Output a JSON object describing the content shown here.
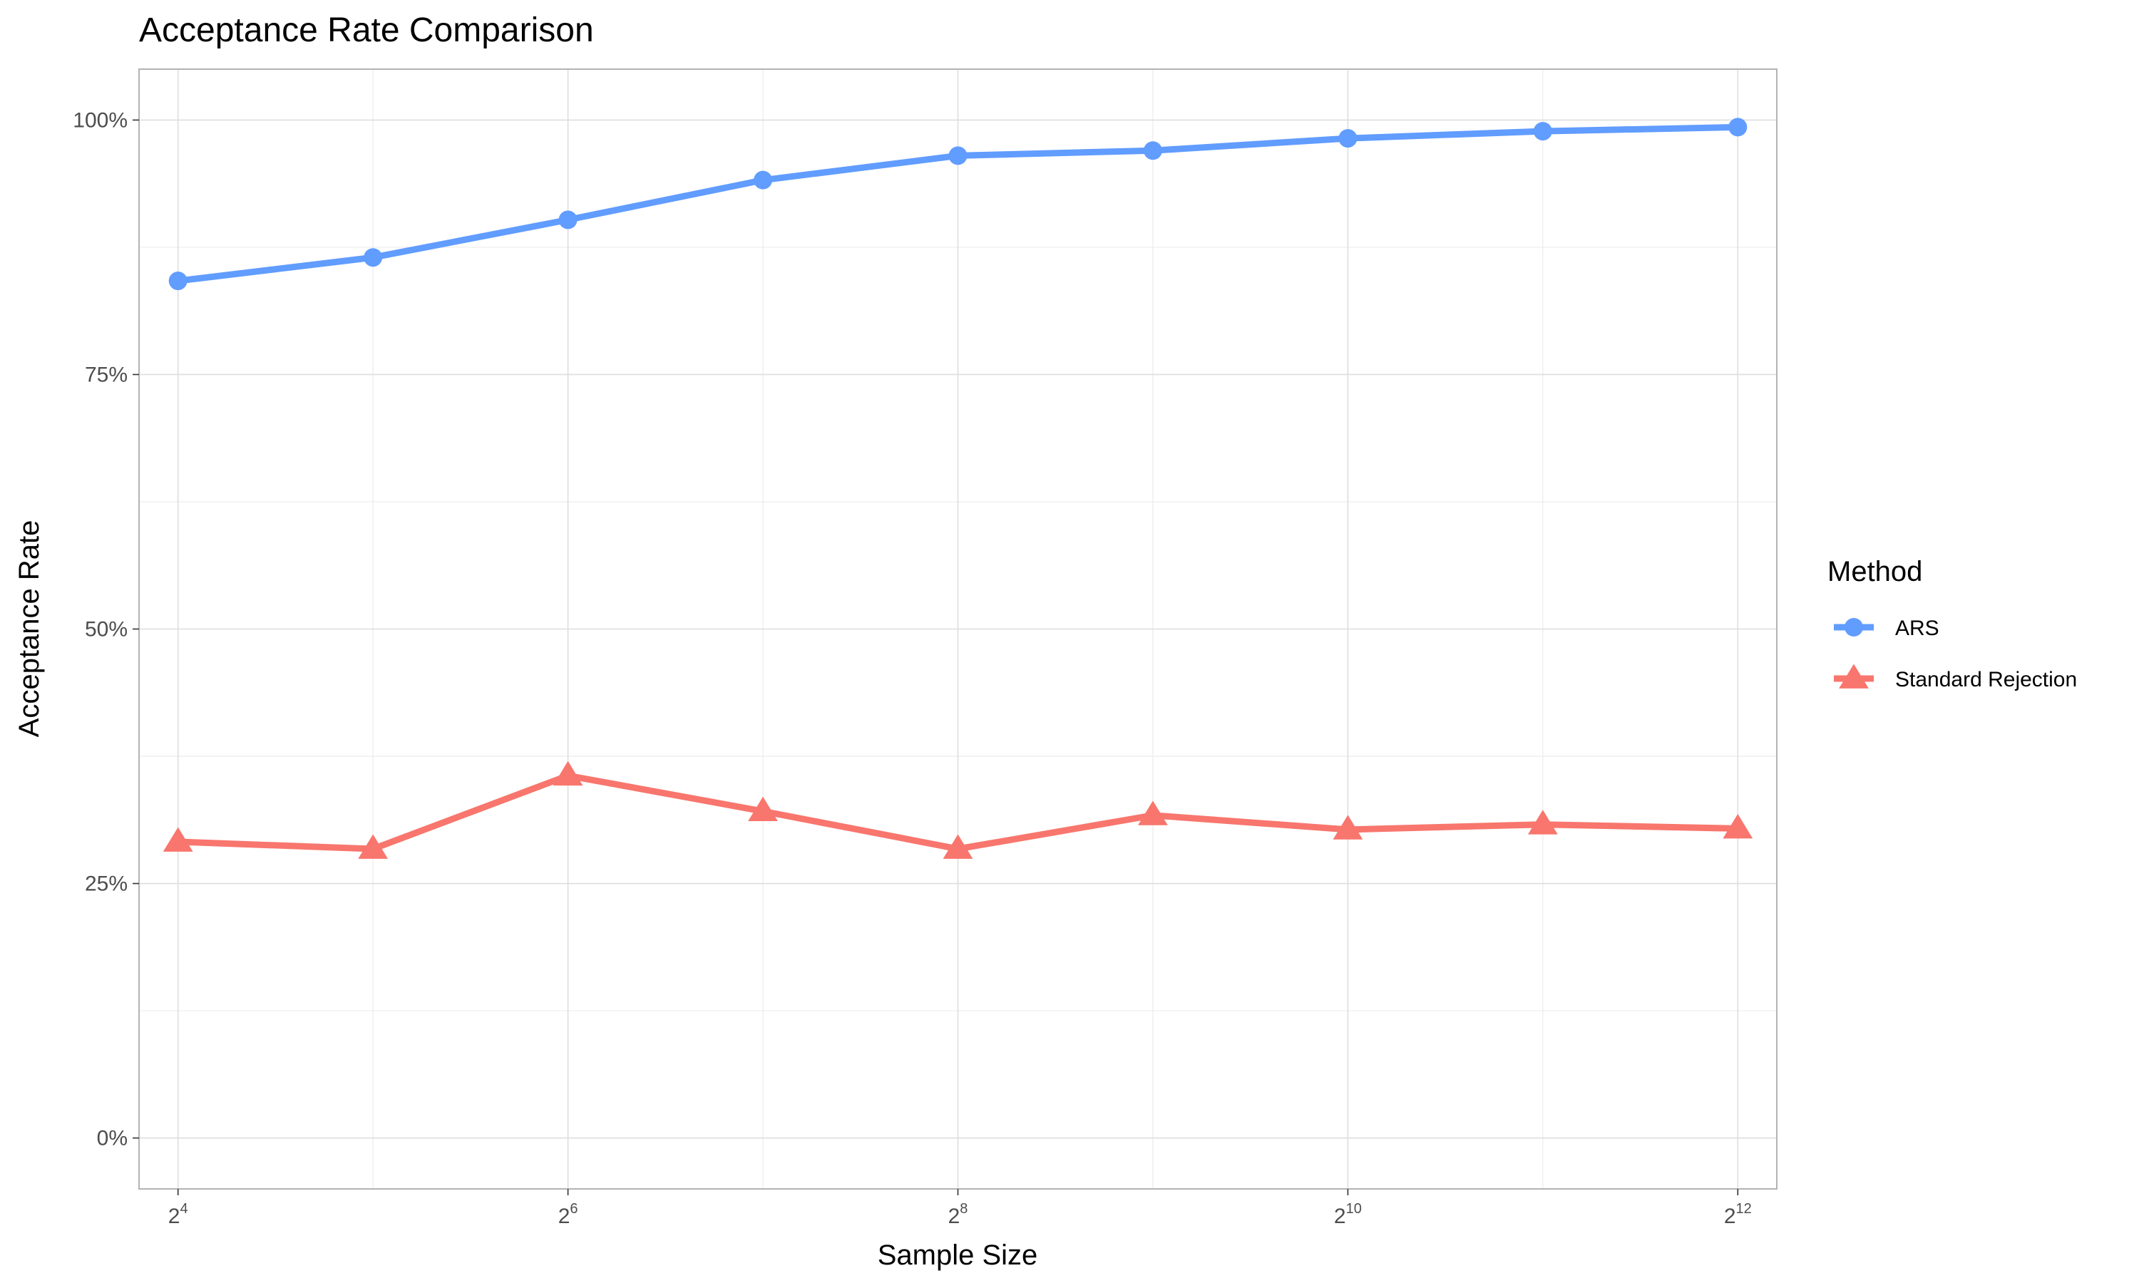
{
  "chart_data": {
    "type": "line",
    "title": "Acceptance Rate Comparison",
    "xlabel": "Sample Size",
    "ylabel": "Acceptance Rate",
    "x_scale": "log2",
    "x": [
      16,
      32,
      64,
      128,
      256,
      512,
      1024,
      2048,
      4096
    ],
    "x_ticks": [
      {
        "value": 16,
        "base": "2",
        "exp": "4"
      },
      {
        "value": 64,
        "base": "2",
        "exp": "6"
      },
      {
        "value": 256,
        "base": "2",
        "exp": "8"
      },
      {
        "value": 1024,
        "base": "2",
        "exp": "10"
      },
      {
        "value": 4096,
        "base": "2",
        "exp": "12"
      }
    ],
    "y_ticks": [
      {
        "value": 0,
        "label": "0%"
      },
      {
        "value": 0.25,
        "label": "25%"
      },
      {
        "value": 0.5,
        "label": "50%"
      },
      {
        "value": 0.75,
        "label": "75%"
      },
      {
        "value": 1.0,
        "label": "100%"
      }
    ],
    "ylim": [
      -0.05,
      1.05
    ],
    "xlim_exp": [
      3.8,
      12.2
    ],
    "grid": true,
    "legend": {
      "title": "Method",
      "position": "right"
    },
    "series": [
      {
        "name": "ARS",
        "color": "#619CFF",
        "marker": "circle",
        "values": [
          0.842,
          0.865,
          0.902,
          0.941,
          0.965,
          0.97,
          0.982,
          0.989,
          0.993
        ]
      },
      {
        "name": "Standard Rejection",
        "color": "#F8766D",
        "marker": "triangle",
        "values": [
          0.291,
          0.284,
          0.356,
          0.321,
          0.284,
          0.317,
          0.303,
          0.308,
          0.304
        ]
      }
    ]
  }
}
